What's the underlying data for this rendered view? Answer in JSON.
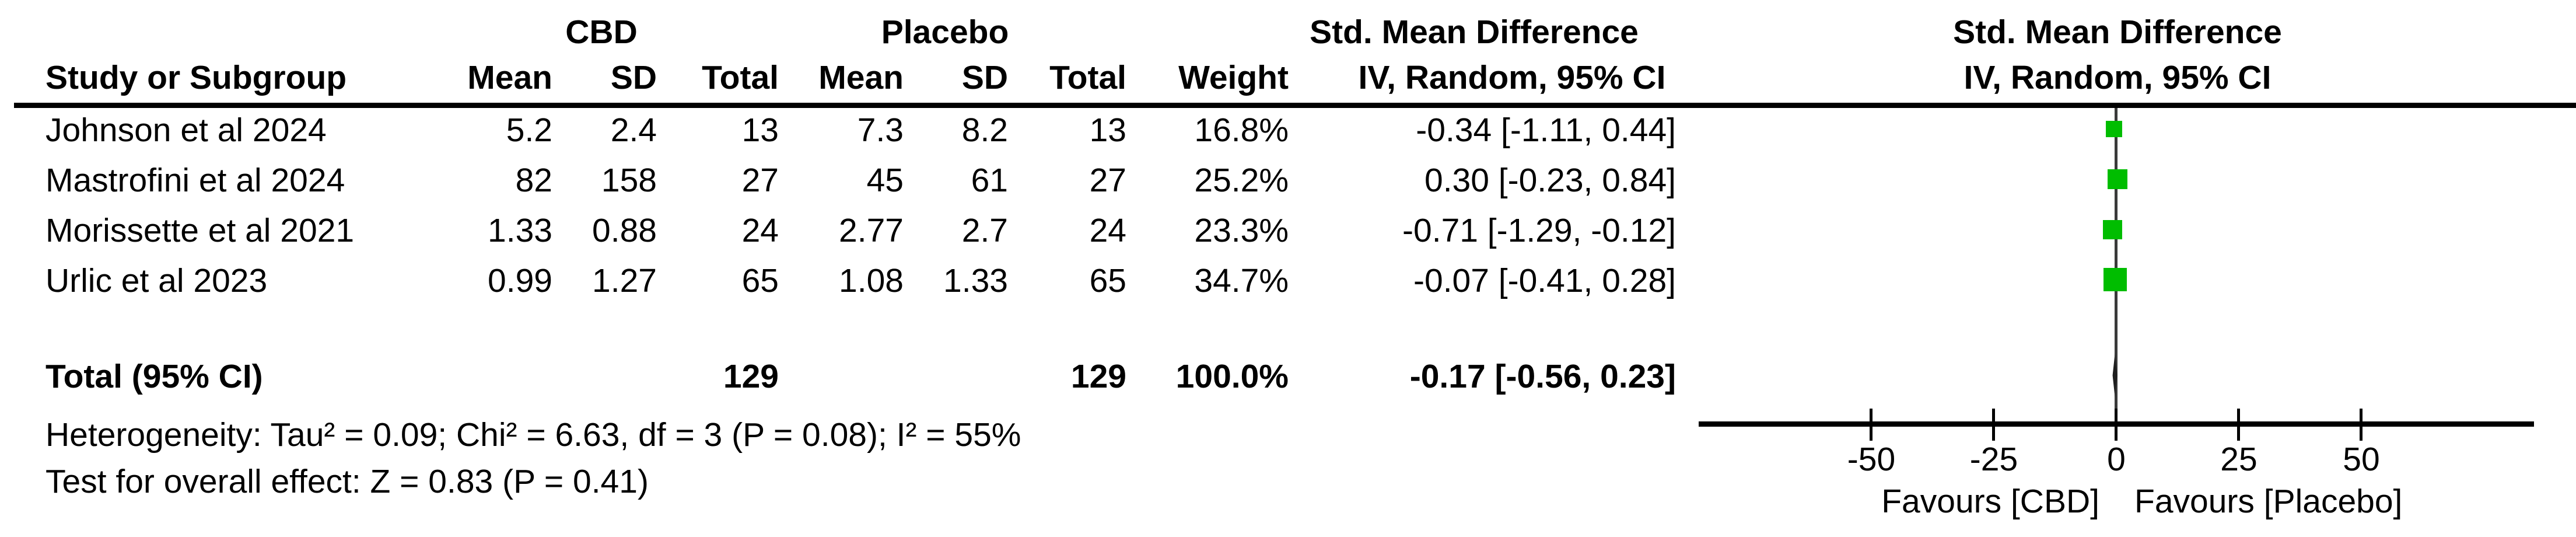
{
  "figure": {
    "group_headers": {
      "treatment": "CBD",
      "control": "Placebo",
      "effect_left": "Std. Mean Difference",
      "effect_right": "Std. Mean Difference"
    },
    "col_headers": {
      "study": "Study or Subgroup",
      "mean1": "Mean",
      "sd1": "SD",
      "total1": "Total",
      "mean2": "Mean",
      "sd2": "SD",
      "total2": "Total",
      "weight": "Weight",
      "method_left": "IV, Random, 95% CI",
      "method_right": "IV, Random, 95% CI"
    },
    "studies": [
      {
        "name": "Johnson et al 2024",
        "mean1": "5.2",
        "sd1": "2.4",
        "total1": "13",
        "mean2": "7.3",
        "sd2": "8.2",
        "total2": "13",
        "weight": "16.8%",
        "ci": "-0.34 [-1.11, 0.44]"
      },
      {
        "name": "Mastrofini et al 2024",
        "mean1": "82",
        "sd1": "158",
        "total1": "27",
        "mean2": "45",
        "sd2": "61",
        "total2": "27",
        "weight": "25.2%",
        "ci": "0.30 [-0.23, 0.84]"
      },
      {
        "name": "Morissette et al 2021",
        "mean1": "1.33",
        "sd1": "0.88",
        "total1": "24",
        "mean2": "2.77",
        "sd2": "2.7",
        "total2": "24",
        "weight": "23.3%",
        "ci": "-0.71 [-1.29, -0.12]"
      },
      {
        "name": "Urlic et al 2023",
        "mean1": "0.99",
        "sd1": "1.27",
        "total1": "65",
        "mean2": "1.08",
        "sd2": "1.33",
        "total2": "65",
        "weight": "34.7%",
        "ci": "-0.07 [-0.41, 0.28]"
      }
    ],
    "total_row": {
      "label": "Total (95% CI)",
      "total1": "129",
      "total2": "129",
      "weight": "100.0%",
      "ci": "-0.17 [-0.56, 0.23]"
    },
    "heterogeneity": "Heterogeneity: Tau² = 0.09; Chi² = 6.63, df = 3 (P = 0.08); I² = 55%",
    "overall_effect": "Test for overall effect: Z = 0.83 (P = 0.41)",
    "axis": {
      "tick_labels": [
        "-50",
        "-25",
        "0",
        "25",
        "50"
      ],
      "favours_left": "Favours [CBD]",
      "favours_right": "Favours [Placebo]"
    },
    "colors": {
      "square": "#00BD00",
      "diamond": "#1e1e1e",
      "zero_line": "#3a3a3a"
    }
  },
  "chart_data": {
    "type": "scatter",
    "subtype": "forest_plot",
    "title": "Std. Mean Difference, IV, Random, 95% CI — CBD vs Placebo",
    "categories": [
      "Johnson et al 2024",
      "Mastrofini et al 2024",
      "Morissette et al 2021",
      "Urlic et al 2023"
    ],
    "series": [
      {
        "name": "Std. Mean Difference (IV, Random, 95% CI)",
        "points": [
          {
            "study": "Johnson et al 2024",
            "cbd_mean": 5.2,
            "cbd_sd": 2.4,
            "cbd_total": 13,
            "placebo_mean": 7.3,
            "placebo_sd": 8.2,
            "placebo_total": 13,
            "weight_pct": 16.8,
            "effect": -0.34,
            "ci_low": -1.11,
            "ci_high": 0.44
          },
          {
            "study": "Mastrofini et al 2024",
            "cbd_mean": 82,
            "cbd_sd": 158,
            "cbd_total": 27,
            "placebo_mean": 45,
            "placebo_sd": 61,
            "placebo_total": 27,
            "weight_pct": 25.2,
            "effect": 0.3,
            "ci_low": -0.23,
            "ci_high": 0.84
          },
          {
            "study": "Morissette et al 2021",
            "cbd_mean": 1.33,
            "cbd_sd": 0.88,
            "cbd_total": 24,
            "placebo_mean": 2.77,
            "placebo_sd": 2.7,
            "placebo_total": 24,
            "weight_pct": 23.3,
            "effect": -0.71,
            "ci_low": -1.29,
            "ci_high": -0.12
          },
          {
            "study": "Urlic et al 2023",
            "cbd_mean": 0.99,
            "cbd_sd": 1.27,
            "cbd_total": 65,
            "placebo_mean": 1.08,
            "placebo_sd": 1.33,
            "placebo_total": 65,
            "weight_pct": 34.7,
            "effect": -0.07,
            "ci_low": -0.41,
            "ci_high": 0.28
          }
        ],
        "total": {
          "label": "Total (95% CI)",
          "cbd_total": 129,
          "placebo_total": 129,
          "weight_pct": 100.0,
          "effect": -0.17,
          "ci_low": -0.56,
          "ci_high": 0.23
        }
      }
    ],
    "heterogeneity": {
      "tau2": 0.09,
      "chi2": 6.63,
      "df": 3,
      "p": 0.08,
      "i2_pct": 55
    },
    "overall_effect": {
      "z": 0.83,
      "p": 0.41
    },
    "x_ticks": [
      -50,
      -25,
      0,
      25,
      50
    ],
    "xlim": [
      -85,
      85
    ],
    "xlabel_left": "Favours [CBD]",
    "xlabel_right": "Favours [Placebo]",
    "grid": false,
    "legend": false
  }
}
